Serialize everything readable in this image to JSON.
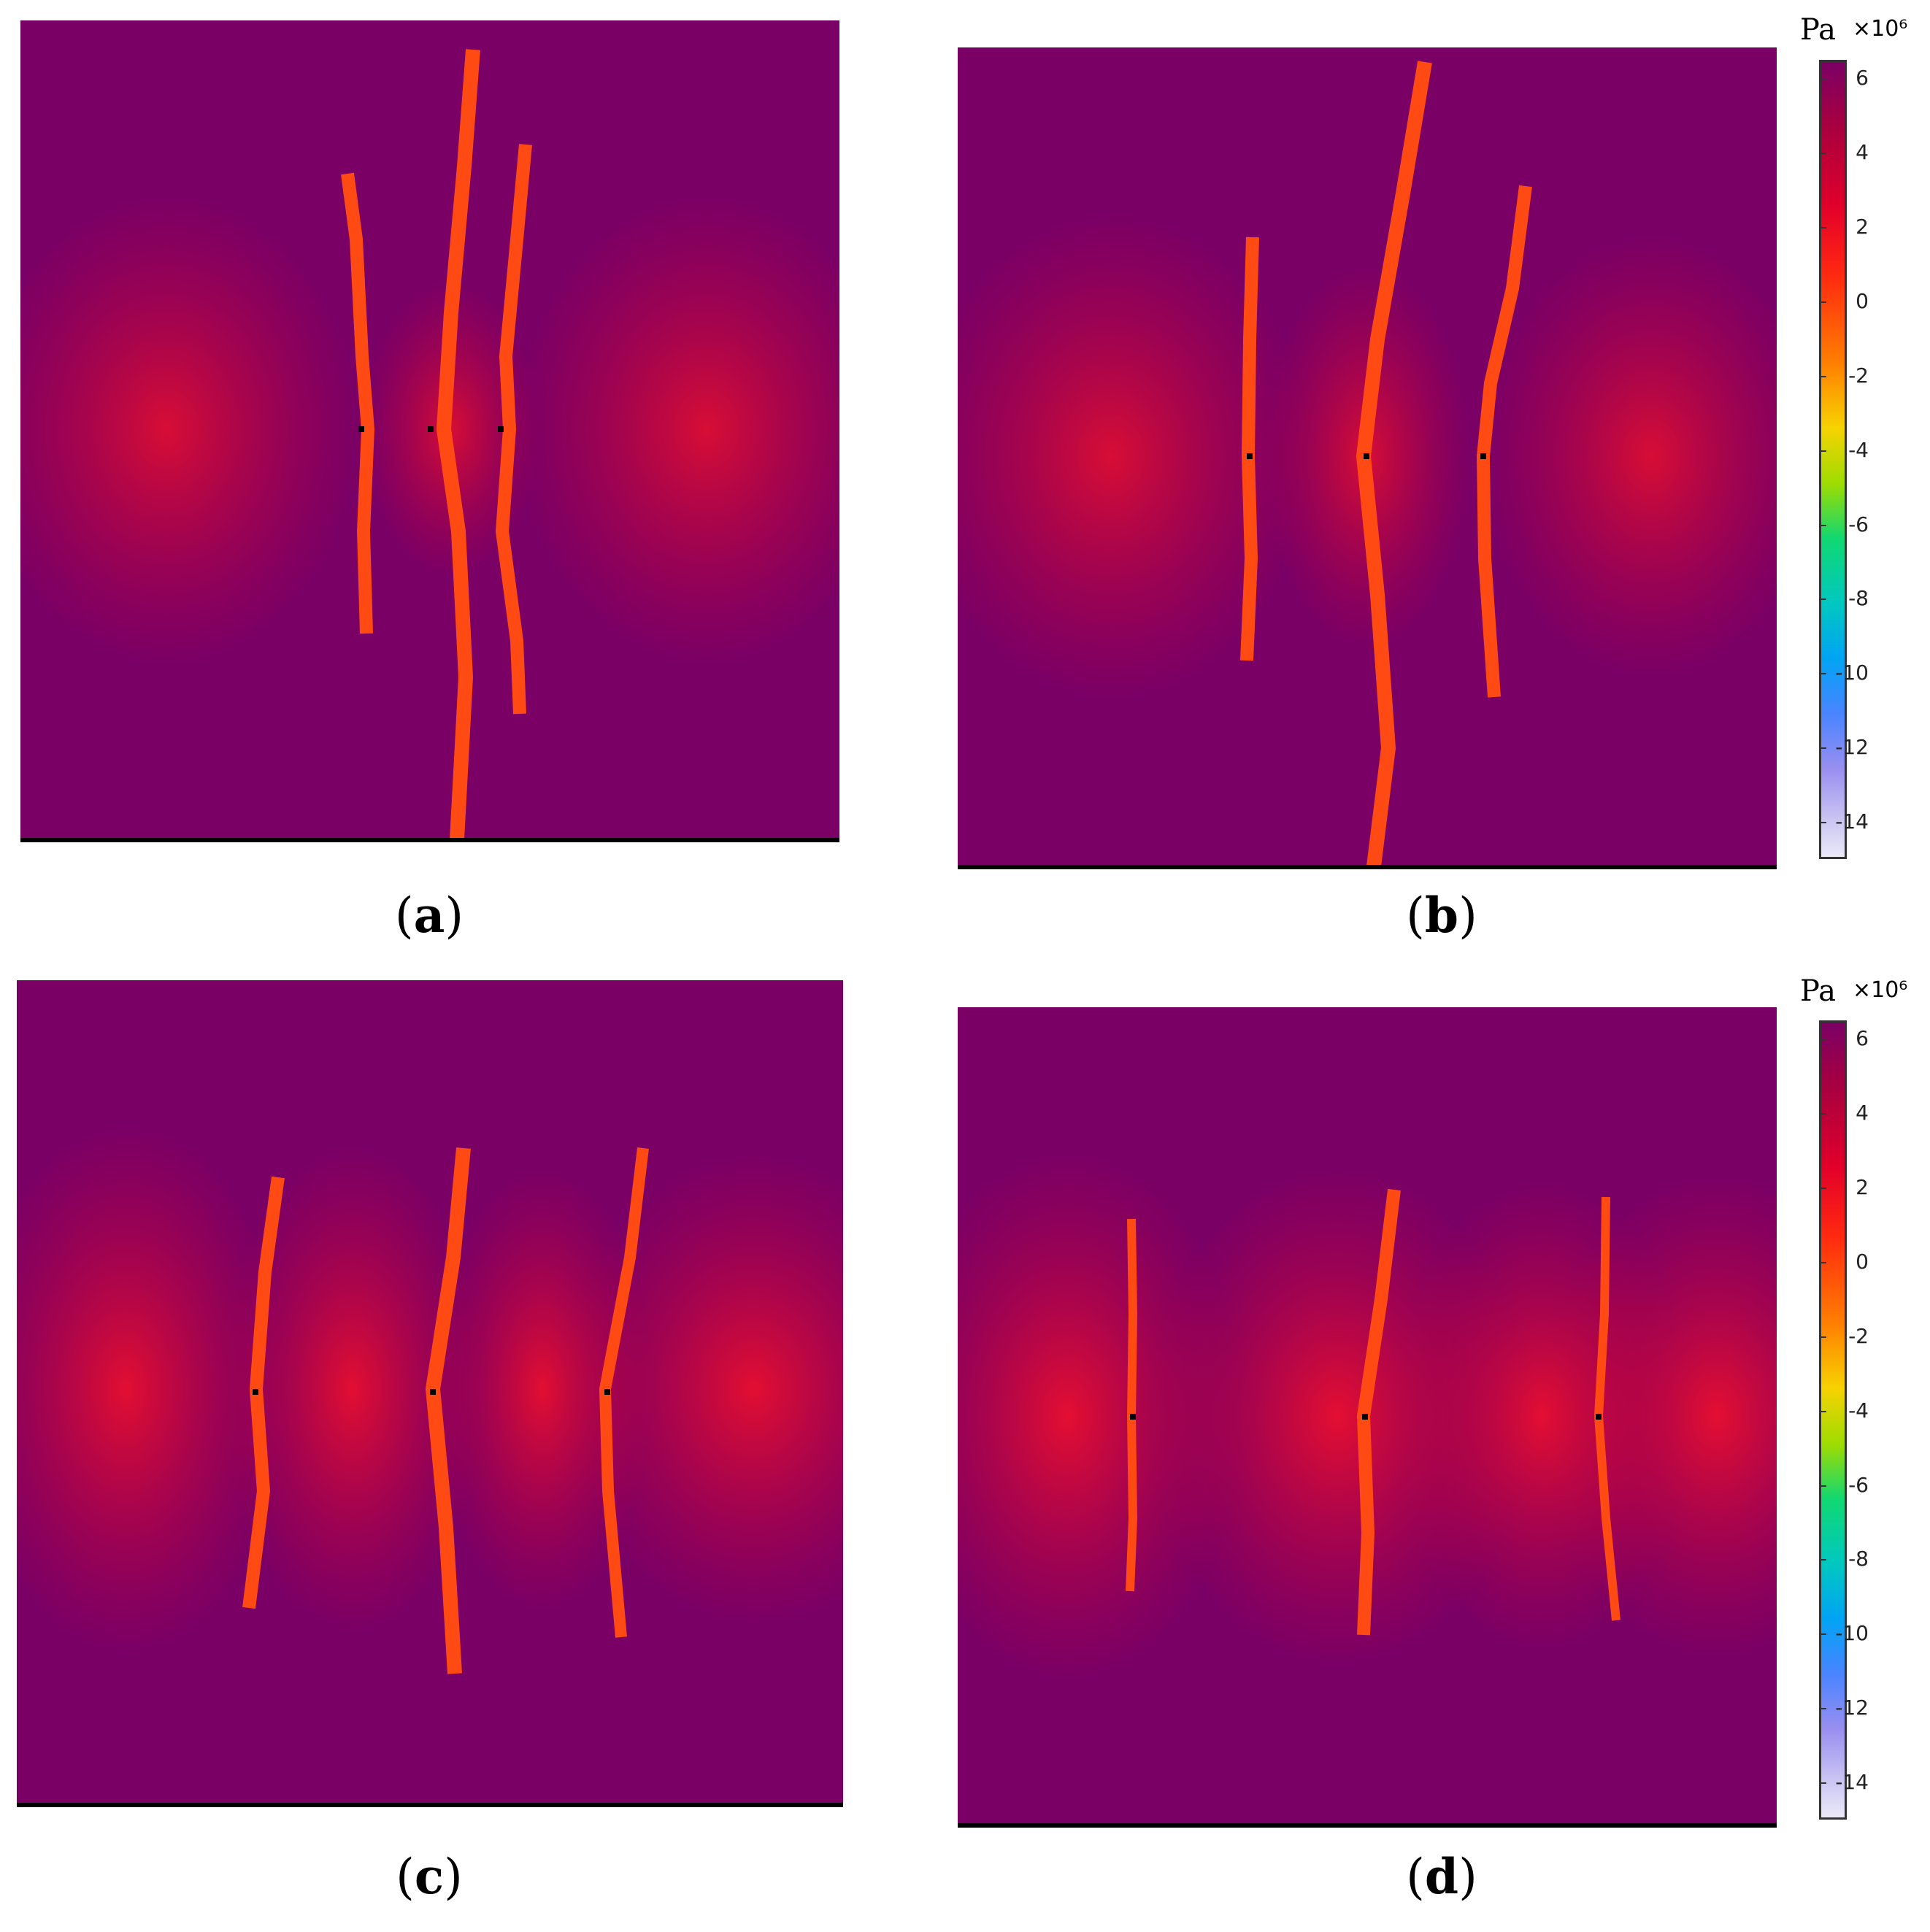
{
  "panels": [
    {
      "label": "a"
    },
    {
      "label": "b"
    },
    {
      "label": "c"
    },
    {
      "label": "d"
    }
  ],
  "colorbar": {
    "unit": "Pa",
    "exponent": "×10⁶",
    "ticks": [
      "6",
      "4",
      "2",
      "0",
      "-2",
      "-4",
      "-6",
      "-8",
      "-10",
      "-12",
      "-14"
    ],
    "range": [
      -15,
      6.5
    ]
  },
  "colors": {
    "background": "#7b0065",
    "fracture": "#ff5a10",
    "stress_halo": "#e0102a"
  }
}
